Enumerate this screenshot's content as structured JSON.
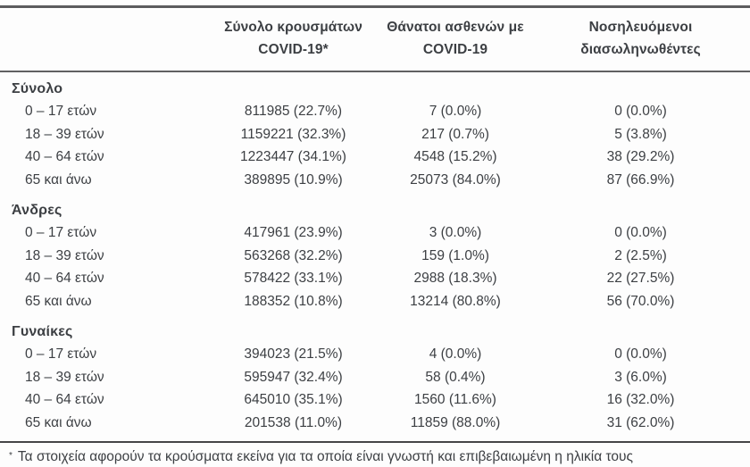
{
  "table": {
    "columns": [
      {
        "line1": "Σύνολο κρουσμάτων",
        "line2": "COVID-19*"
      },
      {
        "line1": "Θάνατοι ασθενών με",
        "line2": "COVID-19"
      },
      {
        "line1": "Νοσηλευόμενοι",
        "line2": "διασωληνωθέντες"
      }
    ],
    "sections": [
      {
        "label": "Σύνολο",
        "rows": [
          {
            "label": "0 – 17 ετών",
            "cases": "811985 (22.7%)",
            "deaths": "7 (0.0%)",
            "intubated": "0 (0.0%)"
          },
          {
            "label": "18 – 39 ετών",
            "cases": "1159221 (32.3%)",
            "deaths": "217 (0.7%)",
            "intubated": "5 (3.8%)"
          },
          {
            "label": "40 – 64 ετών",
            "cases": "1223447 (34.1%)",
            "deaths": "4548 (15.2%)",
            "intubated": "38 (29.2%)"
          },
          {
            "label": "65 και άνω",
            "cases": "389895 (10.9%)",
            "deaths": "25073 (84.0%)",
            "intubated": "87 (66.9%)"
          }
        ]
      },
      {
        "label": "Άνδρες",
        "rows": [
          {
            "label": "0 – 17 ετών",
            "cases": "417961 (23.9%)",
            "deaths": "3 (0.0%)",
            "intubated": "0 (0.0%)"
          },
          {
            "label": "18 – 39 ετών",
            "cases": "563268 (32.2%)",
            "deaths": "159 (1.0%)",
            "intubated": "2 (2.5%)"
          },
          {
            "label": "40 – 64 ετών",
            "cases": "578422 (33.1%)",
            "deaths": "2988 (18.3%)",
            "intubated": "22 (27.5%)"
          },
          {
            "label": "65 και άνω",
            "cases": "188352 (10.8%)",
            "deaths": "13214 (80.8%)",
            "intubated": "56 (70.0%)"
          }
        ]
      },
      {
        "label": "Γυναίκες",
        "rows": [
          {
            "label": "0 – 17 ετών",
            "cases": "394023 (21.5%)",
            "deaths": "4 (0.0%)",
            "intubated": "0 (0.0%)"
          },
          {
            "label": "18 – 39 ετών",
            "cases": "595947 (32.4%)",
            "deaths": "58 (0.4%)",
            "intubated": "3 (6.0%)"
          },
          {
            "label": "40 – 64 ετών",
            "cases": "645010 (35.1%)",
            "deaths": "1560 (11.6%)",
            "intubated": "16 (32.0%)"
          },
          {
            "label": "65 και άνω",
            "cases": "201538 (11.0%)",
            "deaths": "11859 (88.0%)",
            "intubated": "31 (62.0%)"
          }
        ]
      }
    ],
    "footnote": {
      "marker": "*",
      "text": "Τα στοιχεία αφορούν τα κρούσματα εκείνα για τα οποία είναι γνωστή και επιβεβαιωμένη η ηλικία τους"
    }
  },
  "colors": {
    "text": "#3c3f43",
    "border_heavy": "#5c5c5e",
    "border_footnote": "#454547",
    "background": "#fdfdfd"
  }
}
